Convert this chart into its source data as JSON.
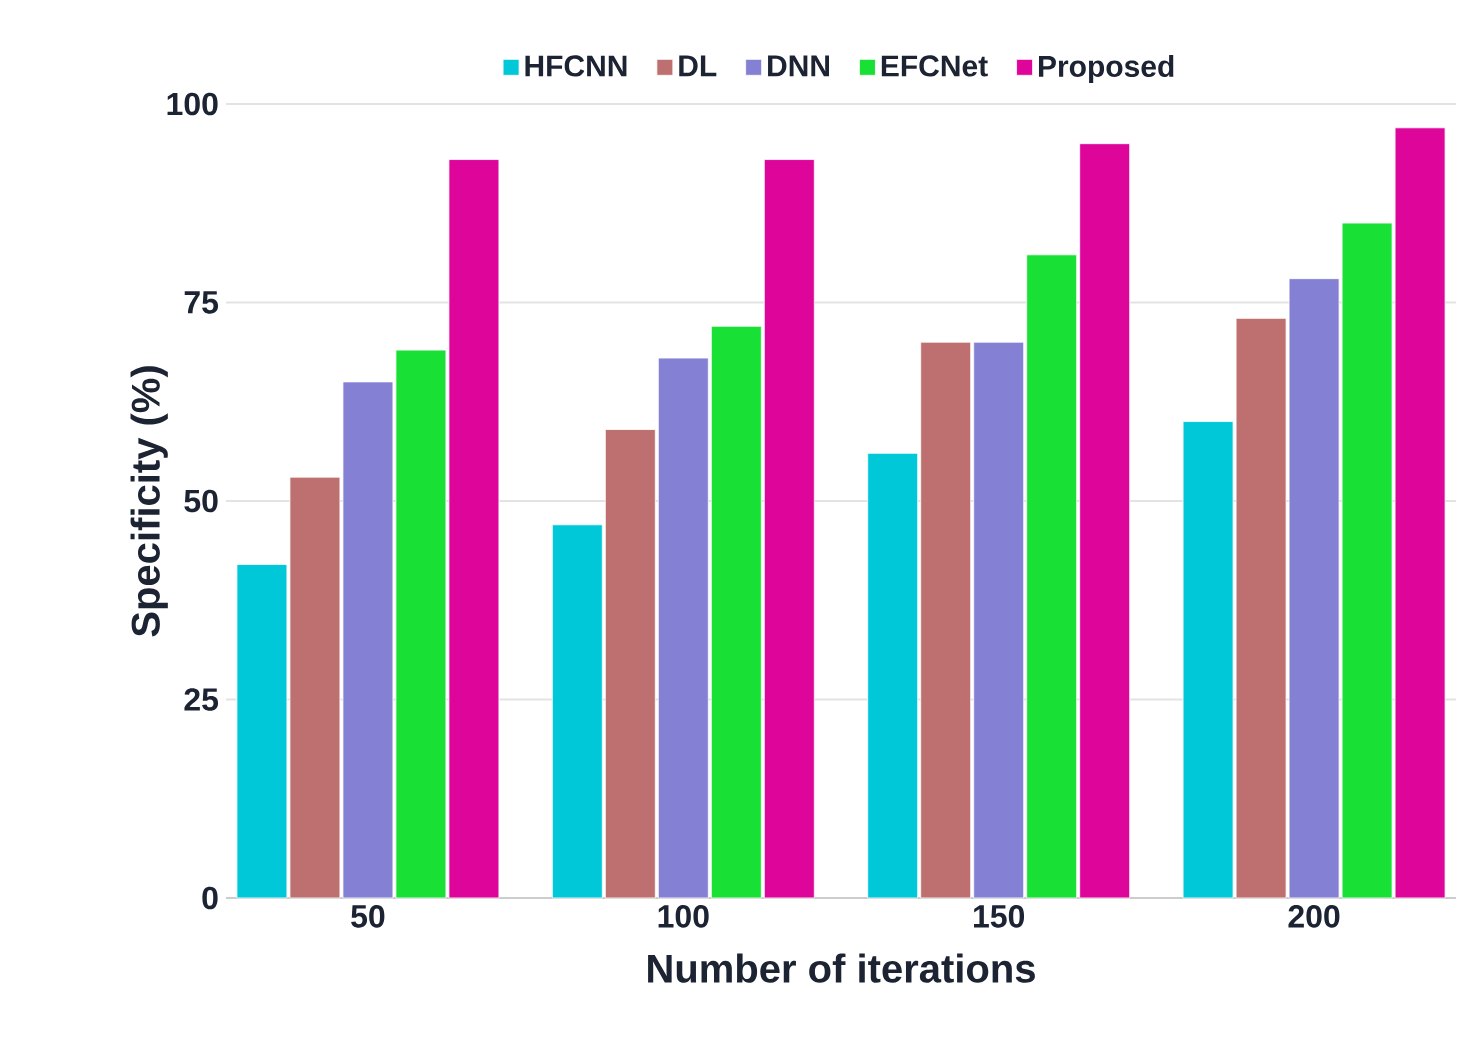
{
  "chart_data": {
    "type": "bar",
    "xlabel": "Number of iterations",
    "ylabel": "Specificity  (%)",
    "categories": [
      "50",
      "100",
      "150",
      "200"
    ],
    "series": [
      {
        "name": "HFCNN",
        "color": "#00c8d8",
        "values": [
          42,
          47,
          56,
          60
        ]
      },
      {
        "name": "DL",
        "color": "#be7070",
        "values": [
          53,
          59,
          70,
          73
        ]
      },
      {
        "name": "DNN",
        "color": "#8480d4",
        "values": [
          65,
          68,
          70,
          78
        ]
      },
      {
        "name": "EFCNet",
        "color": "#18e034",
        "values": [
          69,
          72,
          81,
          85
        ]
      },
      {
        "name": "Proposed",
        "color": "#de069a",
        "values": [
          93,
          93,
          95,
          97
        ]
      }
    ],
    "ylim": [
      0,
      100
    ],
    "yticks": [
      0,
      25,
      50,
      75,
      100
    ],
    "grid": "y",
    "legend": "top"
  }
}
